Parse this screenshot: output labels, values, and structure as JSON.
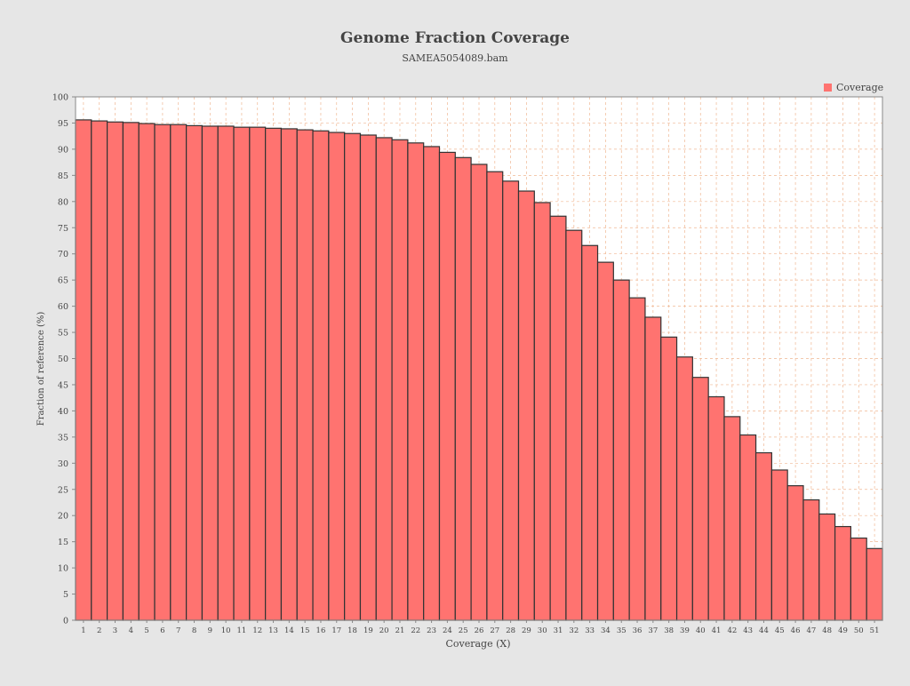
{
  "chart_data": {
    "type": "bar",
    "title": "Genome Fraction Coverage",
    "subtitle": "SAMEA5054089.bam",
    "xlabel": "Coverage (X)",
    "ylabel": "Fraction of reference (%)",
    "ylim": [
      0,
      100
    ],
    "y_ticks": [
      0,
      5,
      10,
      15,
      20,
      25,
      30,
      35,
      40,
      45,
      50,
      55,
      60,
      65,
      70,
      75,
      80,
      85,
      90,
      95,
      100
    ],
    "grid": true,
    "legend_position": "top-right",
    "categories": [
      "1",
      "2",
      "3",
      "4",
      "5",
      "6",
      "7",
      "8",
      "9",
      "10",
      "11",
      "12",
      "13",
      "14",
      "15",
      "16",
      "17",
      "18",
      "19",
      "20",
      "21",
      "22",
      "23",
      "24",
      "25",
      "26",
      "27",
      "28",
      "29",
      "30",
      "31",
      "32",
      "33",
      "34",
      "35",
      "36",
      "37",
      "38",
      "39",
      "40",
      "41",
      "42",
      "43",
      "44",
      "45",
      "46",
      "47",
      "48",
      "49",
      "50",
      "51"
    ],
    "series": [
      {
        "name": "Coverage",
        "color": "#ff7370",
        "values": [
          95.6,
          95.4,
          95.2,
          95.1,
          94.9,
          94.7,
          94.7,
          94.5,
          94.4,
          94.4,
          94.2,
          94.2,
          94.0,
          93.9,
          93.7,
          93.5,
          93.2,
          93.0,
          92.7,
          92.2,
          91.8,
          91.2,
          90.5,
          89.4,
          88.4,
          87.1,
          85.7,
          83.9,
          82.0,
          79.8,
          77.2,
          74.5,
          71.6,
          68.4,
          65.0,
          61.6,
          57.9,
          54.1,
          50.3,
          46.4,
          42.7,
          38.9,
          35.4,
          32.0,
          28.7,
          25.7,
          23.0,
          20.3,
          17.9,
          15.7,
          13.7
        ]
      }
    ]
  }
}
